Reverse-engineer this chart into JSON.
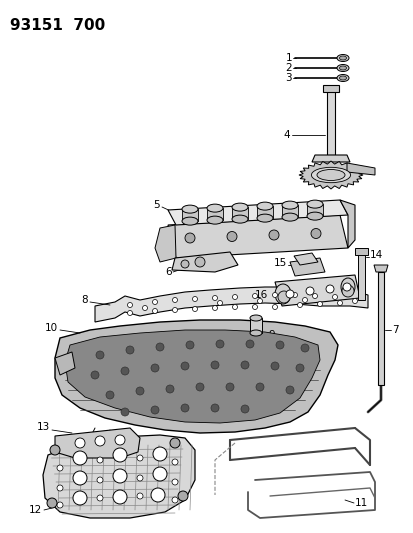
{
  "title": "93151  700",
  "bg_color": "#ffffff",
  "line_color": "#000000",
  "title_fontsize": 11,
  "label_fontsize": 7.5,
  "figsize": [
    4.14,
    5.33
  ],
  "dpi": 100
}
